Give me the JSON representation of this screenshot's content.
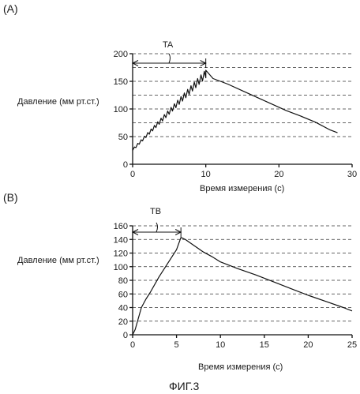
{
  "caption": "ФИГ.3",
  "chart_data": [
    {
      "panel": "(A)",
      "type": "line",
      "xlabel": "Время измерения (с)",
      "ylabel": "Давление (мм рт.ст.)",
      "xlim": [
        0,
        30
      ],
      "ylim": [
        0,
        200
      ],
      "xticks": [
        0,
        10,
        20,
        30
      ],
      "yticks": [
        0,
        50,
        100,
        150,
        200
      ],
      "ygrid": [
        50,
        75,
        100,
        125,
        150,
        175,
        200
      ],
      "grid": "dashed horizontal",
      "interval_label": "TA",
      "interval": [
        0,
        10
      ],
      "peak": [
        10,
        170
      ],
      "rise": {
        "start": [
          0,
          25
        ],
        "oscillation": "increasing sawtooth",
        "cycles": 22
      },
      "decay": [
        [
          10,
          170
        ],
        [
          11,
          155
        ],
        [
          13,
          145
        ],
        [
          15,
          133
        ],
        [
          17,
          121
        ],
        [
          19,
          109
        ],
        [
          21,
          97
        ],
        [
          23,
          87
        ],
        [
          25,
          76
        ],
        [
          27,
          62
        ],
        [
          28,
          57
        ]
      ]
    },
    {
      "panel": "(B)",
      "type": "line",
      "xlabel": "Время измерения (с)",
      "ylabel": "Давление (мм рт.ст.)",
      "xlim": [
        0,
        25
      ],
      "ylim": [
        0,
        160
      ],
      "xticks": [
        0,
        5,
        10,
        15,
        20,
        25
      ],
      "yticks": [
        0,
        20,
        40,
        60,
        80,
        100,
        120,
        140,
        160
      ],
      "ygrid": [
        20,
        40,
        60,
        80,
        100,
        120,
        140,
        160
      ],
      "grid": "dashed horizontal",
      "interval_label": "TB",
      "interval": [
        0,
        5.5
      ],
      "x": [
        0,
        0.3,
        0.6,
        1,
        1.5,
        2,
        3,
        4,
        5,
        5.5,
        6,
        7,
        8,
        9,
        10,
        12,
        14,
        16,
        18,
        20,
        22,
        24,
        25
      ],
      "y": [
        0,
        8,
        22,
        40,
        52,
        62,
        85,
        105,
        125,
        143,
        140,
        131,
        122,
        115,
        107,
        97,
        88,
        78,
        68,
        58,
        49,
        40,
        35
      ]
    }
  ]
}
